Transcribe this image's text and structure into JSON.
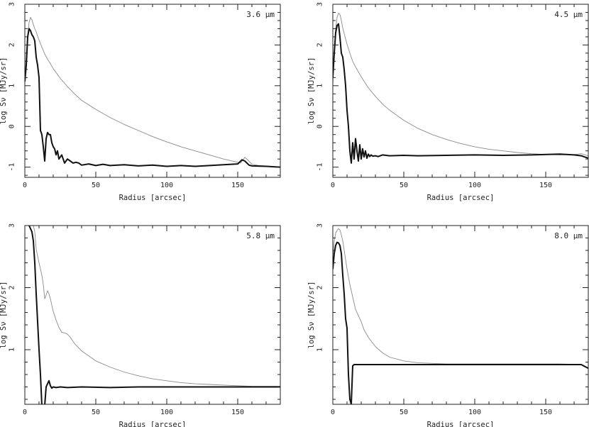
{
  "figure": {
    "xlabel": "Radius [arcsec]",
    "ylabel": "log Sν [MJy/sr]"
  },
  "chart_data": [
    {
      "type": "line",
      "title": "3.6 μm",
      "xlabel": "Radius [arcsec]",
      "ylabel": "log Sν [MJy/sr]",
      "xlim": [
        0,
        180
      ],
      "ylim": [
        -1.25,
        3
      ],
      "xticks": [
        0,
        50,
        100,
        150
      ],
      "yticks": [
        -1,
        0,
        1,
        2,
        3
      ],
      "series": [
        {
          "name": "thin",
          "x": [
            0,
            1,
            2,
            3,
            4,
            5,
            6,
            7,
            8,
            9,
            10,
            12,
            14,
            16,
            18,
            20,
            25,
            30,
            35,
            40,
            50,
            60,
            70,
            80,
            90,
            100,
            110,
            120,
            130,
            140,
            150,
            152,
            155,
            157,
            160,
            165,
            170,
            175,
            180
          ],
          "y": [
            1.2,
            1.75,
            2.25,
            2.55,
            2.68,
            2.62,
            2.5,
            2.4,
            2.32,
            2.22,
            2.12,
            1.95,
            1.78,
            1.65,
            1.54,
            1.42,
            1.18,
            0.98,
            0.8,
            0.64,
            0.42,
            0.22,
            0.05,
            -0.1,
            -0.25,
            -0.38,
            -0.5,
            -0.6,
            -0.7,
            -0.8,
            -0.88,
            -0.9,
            -0.76,
            -0.82,
            -0.93,
            -0.96,
            -0.97,
            -1.0,
            -1.0
          ]
        },
        {
          "name": "thick",
          "x": [
            0,
            1,
            2,
            3,
            4,
            5,
            6,
            7,
            8,
            9,
            10,
            11,
            12,
            13,
            14,
            15,
            16,
            17,
            18,
            19,
            20,
            21,
            22,
            23,
            24,
            25,
            26,
            27,
            28,
            29,
            30,
            32,
            34,
            36,
            38,
            40,
            45,
            50,
            55,
            60,
            70,
            80,
            90,
            100,
            110,
            120,
            130,
            140,
            150,
            153,
            155,
            158,
            160,
            170,
            180
          ],
          "y": [
            1.1,
            1.5,
            2.2,
            2.4,
            2.35,
            2.25,
            2.2,
            2.1,
            1.7,
            1.5,
            1.2,
            -0.1,
            -0.2,
            -0.5,
            -0.85,
            -0.3,
            -0.15,
            -0.2,
            -0.2,
            -0.4,
            -0.5,
            -0.55,
            -0.7,
            -0.6,
            -0.8,
            -0.75,
            -0.7,
            -0.8,
            -0.9,
            -0.85,
            -0.8,
            -0.85,
            -0.9,
            -0.88,
            -0.9,
            -0.95,
            -0.92,
            -0.96,
            -0.93,
            -0.96,
            -0.94,
            -0.97,
            -0.95,
            -0.98,
            -0.96,
            -0.98,
            -0.96,
            -0.94,
            -0.92,
            -0.82,
            -0.85,
            -0.95,
            -0.97,
            -0.98,
            -1.0
          ]
        }
      ]
    },
    {
      "type": "line",
      "title": "4.5 μm",
      "xlabel": "Radius [arcsec]",
      "ylabel": "log Sν [MJy/sr]",
      "xlim": [
        0,
        180
      ],
      "ylim": [
        -1.25,
        3
      ],
      "xticks": [
        0,
        50,
        100,
        150
      ],
      "yticks": [
        -1,
        0,
        1,
        2,
        3
      ],
      "series": [
        {
          "name": "thin",
          "x": [
            0,
            1,
            2,
            3,
            4,
            5,
            6,
            7,
            8,
            9,
            10,
            12,
            14,
            16,
            18,
            20,
            25,
            30,
            35,
            40,
            50,
            60,
            70,
            80,
            90,
            100,
            110,
            120,
            130,
            140,
            150,
            160,
            170,
            175,
            180
          ],
          "y": [
            1.0,
            1.9,
            2.4,
            2.68,
            2.78,
            2.75,
            2.6,
            2.42,
            2.28,
            2.15,
            2.02,
            1.8,
            1.6,
            1.46,
            1.34,
            1.22,
            0.95,
            0.74,
            0.55,
            0.4,
            0.15,
            -0.05,
            -0.2,
            -0.32,
            -0.42,
            -0.5,
            -0.56,
            -0.6,
            -0.64,
            -0.67,
            -0.69,
            -0.7,
            -0.69,
            -0.67,
            -0.72
          ]
        },
        {
          "name": "thick",
          "x": [
            0,
            1,
            2,
            3,
            4,
            5,
            6,
            7,
            8,
            9,
            10,
            11,
            12,
            13,
            14,
            15,
            16,
            17,
            18,
            19,
            20,
            21,
            22,
            23,
            24,
            25,
            26,
            27,
            28,
            30,
            32,
            35,
            40,
            50,
            60,
            80,
            100,
            120,
            140,
            160,
            170,
            175,
            180
          ],
          "y": [
            1.2,
            1.8,
            2.3,
            2.48,
            2.52,
            2.2,
            1.8,
            1.7,
            1.4,
            1.0,
            0.4,
            0.0,
            -0.6,
            -0.9,
            -0.4,
            -0.8,
            -0.3,
            -0.6,
            -0.85,
            -0.45,
            -0.8,
            -0.55,
            -0.75,
            -0.6,
            -0.78,
            -0.68,
            -0.74,
            -0.7,
            -0.73,
            -0.72,
            -0.74,
            -0.7,
            -0.72,
            -0.71,
            -0.72,
            -0.71,
            -0.7,
            -0.71,
            -0.7,
            -0.68,
            -0.7,
            -0.72,
            -0.78
          ]
        }
      ]
    },
    {
      "type": "line",
      "title": "5.8 μm",
      "xlabel": "Radius [arcsec]",
      "ylabel": "log Sν [MJy/sr]",
      "xlim": [
        0,
        180
      ],
      "ylim": [
        0.12,
        3
      ],
      "xticks": [
        0,
        50,
        100,
        150
      ],
      "yticks": [
        1,
        2,
        3
      ],
      "series": [
        {
          "name": "thin",
          "x": [
            0,
            2,
            4,
            5,
            6,
            7,
            8,
            10,
            12,
            13,
            14,
            15,
            16,
            17,
            18,
            20,
            22,
            24,
            26,
            28,
            30,
            32,
            35,
            40,
            45,
            50,
            60,
            70,
            80,
            90,
            100,
            110,
            120,
            130,
            140,
            150,
            160,
            170,
            180
          ],
          "y": [
            3.05,
            3.05,
            3.05,
            3.05,
            3.0,
            2.9,
            2.62,
            2.4,
            2.2,
            2.05,
            1.82,
            1.88,
            1.95,
            1.9,
            1.82,
            1.62,
            1.48,
            1.36,
            1.28,
            1.27,
            1.25,
            1.2,
            1.1,
            0.98,
            0.9,
            0.82,
            0.72,
            0.64,
            0.58,
            0.53,
            0.5,
            0.47,
            0.45,
            0.44,
            0.43,
            0.42,
            0.41,
            0.41,
            0.41
          ]
        },
        {
          "name": "thick",
          "x": [
            0,
            2,
            3,
            4,
            5,
            6,
            7,
            8,
            10,
            11,
            12,
            13,
            14,
            15,
            16,
            17,
            18,
            19,
            20,
            22,
            25,
            30,
            40,
            60,
            80,
            100,
            120,
            140,
            160,
            180
          ],
          "y": [
            3.05,
            3.05,
            3.0,
            2.95,
            2.9,
            2.75,
            2.4,
            1.9,
            1.0,
            0.6,
            0.1,
            0.05,
            0.1,
            0.4,
            0.45,
            0.5,
            0.42,
            0.38,
            0.4,
            0.39,
            0.4,
            0.39,
            0.4,
            0.39,
            0.4,
            0.4,
            0.4,
            0.4,
            0.4,
            0.4
          ]
        }
      ]
    },
    {
      "type": "line",
      "title": "8.0 μm",
      "xlabel": "Radius [arcsec]",
      "ylabel": "log Sν [MJy/sr]",
      "xlim": [
        0,
        180
      ],
      "ylim": [
        0.12,
        3
      ],
      "xticks": [
        0,
        50,
        100,
        150
      ],
      "yticks": [
        1,
        2,
        3
      ],
      "series": [
        {
          "name": "thin",
          "x": [
            0,
            1,
            2,
            3,
            4,
            5,
            6,
            7,
            8,
            9,
            10,
            12,
            14,
            16,
            18,
            20,
            22,
            25,
            30,
            35,
            40,
            50,
            60,
            80,
            100,
            120,
            140,
            160,
            175,
            180
          ],
          "y": [
            2.5,
            2.75,
            2.88,
            2.92,
            2.95,
            2.93,
            2.85,
            2.75,
            2.6,
            2.45,
            2.3,
            2.05,
            1.85,
            1.65,
            1.55,
            1.45,
            1.32,
            1.2,
            1.05,
            0.95,
            0.88,
            0.82,
            0.79,
            0.77,
            0.77,
            0.77,
            0.77,
            0.77,
            0.76,
            0.7
          ]
        },
        {
          "name": "thick",
          "x": [
            0,
            1,
            2,
            3,
            4,
            5,
            6,
            7,
            8,
            9,
            10,
            11,
            12,
            13,
            14,
            15,
            16,
            20,
            30,
            50,
            100,
            150,
            175,
            180
          ],
          "y": [
            2.3,
            2.55,
            2.68,
            2.73,
            2.72,
            2.68,
            2.55,
            2.2,
            1.9,
            1.5,
            1.35,
            0.6,
            0.2,
            0.12,
            0.74,
            0.76,
            0.76,
            0.76,
            0.76,
            0.76,
            0.76,
            0.76,
            0.76,
            0.7
          ]
        }
      ]
    }
  ]
}
